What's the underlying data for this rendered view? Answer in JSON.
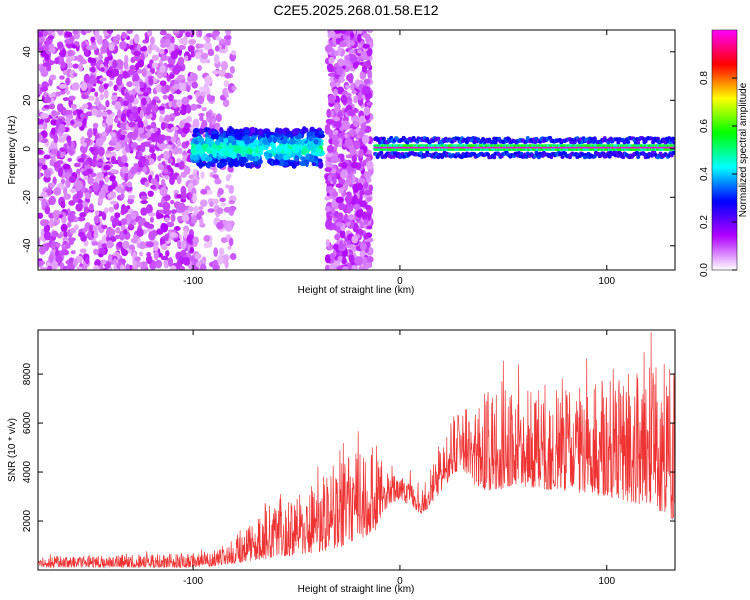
{
  "title": "C2E5.2025.268.01.58.E12",
  "colorbar_colors": [
    "#ffffff",
    "#b000ff",
    "#0000ff",
    "#00ffff",
    "#00ff00",
    "#ffff00",
    "#ff0000",
    "#ff00ff"
  ],
  "chart_data": [
    {
      "type": "heatmap",
      "xlabel": "Height of straight line (km)",
      "ylabel": "Frequency (Hz)",
      "xlim": [
        -175,
        133
      ],
      "ylim": [
        -50,
        49
      ],
      "xticks": [
        "-100",
        "0",
        "100"
      ],
      "yticks": [
        "-40",
        "-20",
        "0",
        "20",
        "40"
      ],
      "colorbar": {
        "label": "Normalized spectral amplitude",
        "range": [
          0,
          1
        ],
        "ticks": [
          "0.0",
          "0.2",
          "0.4",
          "0.6",
          "0.8"
        ]
      },
      "regions": [
        {
          "x": [
            -175,
            -100
          ],
          "freq": [
            -50,
            49
          ],
          "level": "low, broadband noise"
        },
        {
          "x": [
            -100,
            -80
          ],
          "freq": [
            -50,
            49
          ],
          "level": "sparse noise"
        },
        {
          "x": [
            -100,
            -38
          ],
          "freq": [
            -7,
            8
          ],
          "level": "0.3-0.5 band"
        },
        {
          "x": [
            -35,
            -14
          ],
          "freq": [
            -50,
            49
          ],
          "level": "broadband noise"
        },
        {
          "x": [
            -12,
            133
          ],
          "freq": [
            -2,
            3
          ],
          "level": "1.0 narrow line at ~0 Hz"
        }
      ]
    },
    {
      "type": "line",
      "xlabel": "Height of straight line (km)",
      "ylabel": "SNR (10 * v/v)",
      "xlim": [
        -175,
        133
      ],
      "ylim": [
        0,
        9800
      ],
      "xticks": [
        "-100",
        "0",
        "100"
      ],
      "yticks": [
        "2000",
        "4000",
        "6000",
        "8000"
      ],
      "color": "#ef3333",
      "envelope": {
        "x": [
          -175,
          -150,
          -125,
          -100,
          -90,
          -80,
          -70,
          -60,
          -50,
          -40,
          -30,
          -20,
          -12,
          -8,
          -4,
          0,
          5,
          10,
          15,
          20,
          25,
          30,
          35,
          40,
          45,
          50,
          55,
          60,
          70,
          80,
          90,
          100,
          110,
          120,
          133
        ],
        "low": [
          100,
          100,
          100,
          100,
          150,
          250,
          400,
          500,
          600,
          700,
          900,
          1200,
          1600,
          2400,
          2700,
          2900,
          2600,
          2300,
          2600,
          3200,
          3800,
          4200,
          3500,
          3300,
          3200,
          3300,
          3500,
          3400,
          3300,
          3200,
          3100,
          3000,
          2800,
          2600,
          2000
        ],
        "high": [
          550,
          600,
          650,
          700,
          800,
          1300,
          2000,
          2700,
          3200,
          3700,
          4300,
          4900,
          5200,
          4300,
          4000,
          3800,
          3600,
          3200,
          4300,
          5100,
          6200,
          6700,
          6900,
          7200,
          7400,
          7500,
          7500,
          7400,
          7300,
          7500,
          7600,
          8000,
          8200,
          8400,
          8500
        ]
      }
    }
  ]
}
